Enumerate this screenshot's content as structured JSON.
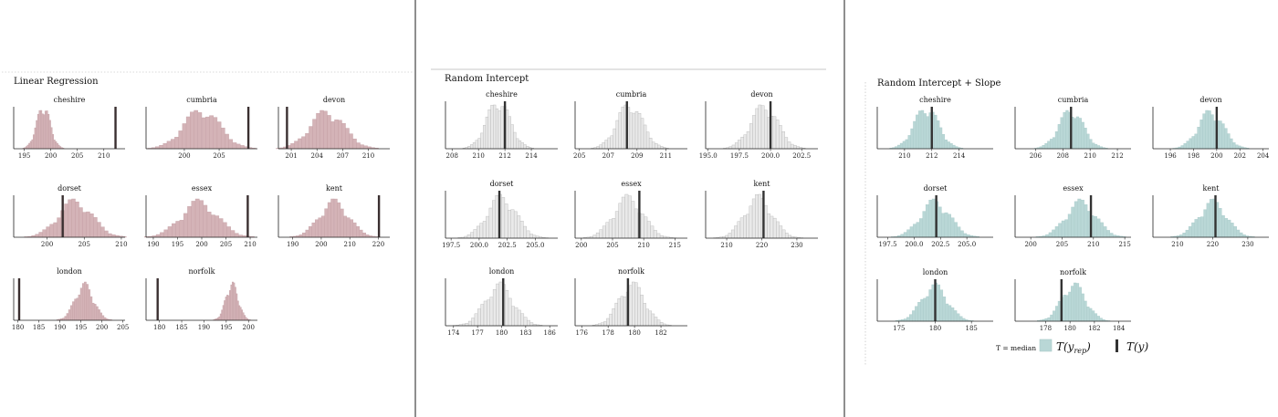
{
  "colors": {
    "linear": {
      "fill": "#d4b3b7",
      "stroke": "#c4a0a5",
      "obs": "#3a2f30"
    },
    "intercept": {
      "fill": "#e9e9e9",
      "stroke": "#b5b5b5",
      "obs": "#333333"
    },
    "slope": {
      "fill": "#b9d7d6",
      "stroke": "#a9cac9",
      "obs": "#333333"
    },
    "divider": "#444444"
  },
  "legend": {
    "stat_label": "T = median",
    "rep_label": "T(y",
    "rep_sub": "rep",
    "rep_close": ")",
    "obs_label": "T(y)"
  },
  "chart_data": [
    {
      "type": "histogram",
      "title": "Linear Regression",
      "facets": [
        {
          "name": "cheshire",
          "xlim": [
            193,
            214
          ],
          "ticks": [
            195,
            200,
            205,
            210
          ],
          "mean": 198.6,
          "sd": 1.3,
          "obs": 212.2
        },
        {
          "name": "cumbria",
          "xlim": [
            194.5,
            210.5
          ],
          "ticks": [
            200,
            205
          ],
          "mean": 202.5,
          "sd": 2.6,
          "obs": 209.2
        },
        {
          "name": "devon",
          "xlim": [
            199.5,
            212.5
          ],
          "ticks": [
            201,
            204,
            207,
            210
          ],
          "mean": 205.2,
          "sd": 2.0,
          "obs": 200.5
        },
        {
          "name": "dorset",
          "xlim": [
            195.5,
            210.5
          ],
          "ticks": [
            200,
            205,
            210
          ],
          "mean": 203.8,
          "sd": 2.3,
          "obs": 202.1
        },
        {
          "name": "essex",
          "xlim": [
            188.5,
            211.5
          ],
          "ticks": [
            190,
            195,
            200,
            205,
            210
          ],
          "mean": 199.5,
          "sd": 3.8,
          "obs": 209.5
        },
        {
          "name": "kent",
          "xlim": [
            185,
            224
          ],
          "ticks": [
            190,
            200,
            210,
            220
          ],
          "mean": 204.5,
          "sd": 5.2,
          "obs": 220.2
        },
        {
          "name": "london",
          "xlim": [
            179,
            205.5
          ],
          "ticks": [
            180,
            185,
            190,
            195,
            200,
            205
          ],
          "mean": 195.8,
          "sd": 2.2,
          "obs": 180.3
        },
        {
          "name": "norfolk",
          "xlim": [
            177,
            202
          ],
          "ticks": [
            180,
            185,
            190,
            195,
            200
          ],
          "mean": 196.3,
          "sd": 1.4,
          "obs": 179.6
        }
      ]
    },
    {
      "type": "histogram",
      "title": "Random Intercept",
      "facets": [
        {
          "name": "cheshire",
          "xlim": [
            207.5,
            216
          ],
          "ticks": [
            208,
            210,
            212,
            214
          ],
          "mean": 211.5,
          "sd": 0.9,
          "obs": 212.0
        },
        {
          "name": "cumbria",
          "xlim": [
            204.7,
            212.5
          ],
          "ticks": [
            205,
            207,
            209,
            211
          ],
          "mean": 208.5,
          "sd": 0.9,
          "obs": 208.3
        },
        {
          "name": "devon",
          "xlim": [
            194.8,
            203.8
          ],
          "ticks": [
            195.0,
            197.5,
            200.0,
            202.5
          ],
          "mean": 199.5,
          "sd": 1.1,
          "obs": 200.0
        },
        {
          "name": "dorset",
          "xlim": [
            197,
            207
          ],
          "ticks": [
            197.5,
            200.0,
            202.5,
            205.0
          ],
          "mean": 202.0,
          "sd": 1.3,
          "obs": 201.8
        },
        {
          "name": "essex",
          "xlim": [
            199,
            217
          ],
          "ticks": [
            200,
            205,
            210,
            215
          ],
          "mean": 207.5,
          "sd": 2.4,
          "obs": 209.3
        },
        {
          "name": "kent",
          "xlim": [
            204,
            236
          ],
          "ticks": [
            210,
            220,
            230
          ],
          "mean": 219.0,
          "sd": 4.0,
          "obs": 220.5
        },
        {
          "name": "london",
          "xlim": [
            173,
            187
          ],
          "ticks": [
            174,
            177,
            180,
            183,
            186
          ],
          "mean": 179.7,
          "sd": 1.8,
          "obs": 180.2
        },
        {
          "name": "norfolk",
          "xlim": [
            175.5,
            184
          ],
          "ticks": [
            176,
            178,
            180,
            182
          ],
          "mean": 179.8,
          "sd": 1.0,
          "obs": 179.5
        }
      ]
    },
    {
      "type": "histogram",
      "title": "Random Intercept + Slope",
      "facets": [
        {
          "name": "cheshire",
          "xlim": [
            208,
            216.5
          ],
          "ticks": [
            210,
            212,
            214
          ],
          "mean": 211.6,
          "sd": 0.9,
          "obs": 212.0
        },
        {
          "name": "cumbria",
          "xlim": [
            204.5,
            213
          ],
          "ticks": [
            206,
            208,
            210,
            212
          ],
          "mean": 208.6,
          "sd": 0.9,
          "obs": 208.6
        },
        {
          "name": "devon",
          "xlim": [
            194.5,
            204.5
          ],
          "ticks": [
            196,
            198,
            200,
            202,
            204
          ],
          "mean": 199.5,
          "sd": 1.1,
          "obs": 200.0
        },
        {
          "name": "dorset",
          "xlim": [
            196.5,
            207.5
          ],
          "ticks": [
            197.5,
            200.0,
            202.5,
            205.0
          ],
          "mean": 202.0,
          "sd": 1.4,
          "obs": 202.1
        },
        {
          "name": "essex",
          "xlim": [
            197.5,
            216
          ],
          "ticks": [
            200,
            205,
            210,
            215
          ],
          "mean": 208.0,
          "sd": 2.4,
          "obs": 209.6
        },
        {
          "name": "kent",
          "xlim": [
            203,
            236
          ],
          "ticks": [
            210,
            220,
            230
          ],
          "mean": 220.0,
          "sd": 4.0,
          "obs": 220.8
        },
        {
          "name": "london",
          "xlim": [
            172,
            188
          ],
          "ticks": [
            175,
            180,
            185
          ],
          "mean": 179.9,
          "sd": 1.8,
          "obs": 180.0
        },
        {
          "name": "norfolk",
          "xlim": [
            175.5,
            185
          ],
          "ticks": [
            178,
            180,
            182,
            184
          ],
          "mean": 180.3,
          "sd": 1.0,
          "obs": 179.3
        }
      ]
    }
  ]
}
